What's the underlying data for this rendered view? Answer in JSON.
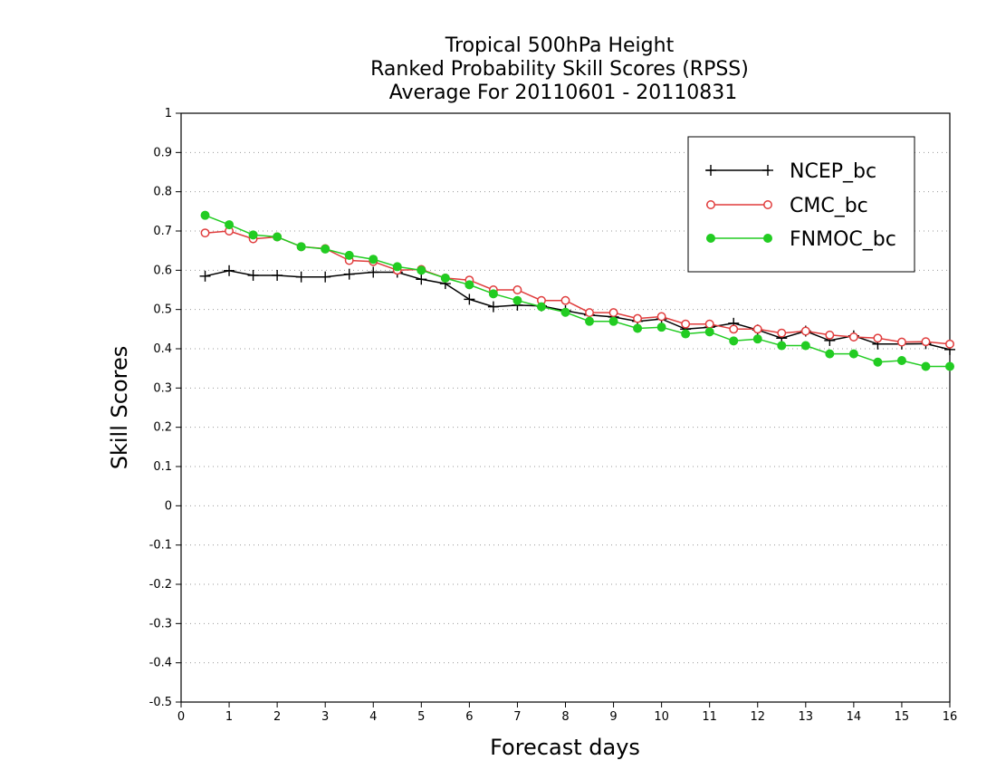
{
  "chart_data": {
    "type": "line",
    "title": [
      "Tropical 500hPa Height",
      "Ranked Probability Skill Scores (RPSS)",
      "Average For 20110601 - 20110831"
    ],
    "xlabel": "Forecast days",
    "ylabel": "Skill Scores",
    "xlim": [
      0,
      16
    ],
    "ylim": [
      -0.5,
      1
    ],
    "xticks": [
      0,
      1,
      2,
      3,
      4,
      5,
      6,
      7,
      8,
      9,
      10,
      11,
      12,
      13,
      14,
      15,
      16
    ],
    "yticks": [
      -0.5,
      -0.4,
      -0.3,
      -0.2,
      -0.1,
      0,
      0.1,
      0.2,
      0.3,
      0.4,
      0.5,
      0.6,
      0.7,
      0.8,
      0.9,
      1
    ],
    "ytick_labels": [
      "-0.5",
      "-0.4",
      "-0.3",
      "-0.2",
      "-0.1",
      "0",
      "0.1",
      "0.2",
      "0.3",
      "0.4",
      "0.5",
      "0.6",
      "0.7",
      "0.8",
      "0.9",
      "1"
    ],
    "grid": "horizontal dotted",
    "legend_position": "top-right",
    "x": [
      0.5,
      1,
      1.5,
      2,
      2.5,
      3,
      3.5,
      4,
      4.5,
      5,
      5.5,
      6,
      6.5,
      7,
      7.5,
      8,
      8.5,
      9,
      9.5,
      10,
      10.5,
      11,
      11.5,
      12,
      12.5,
      13,
      13.5,
      14,
      14.5,
      15,
      15.5,
      16
    ],
    "series": [
      {
        "name": "NCEP_bc",
        "color": "#000000",
        "marker": "plus",
        "values": [
          0.585,
          0.599,
          0.587,
          0.587,
          0.583,
          0.583,
          0.59,
          0.595,
          0.595,
          0.577,
          0.566,
          0.526,
          0.507,
          0.511,
          0.509,
          0.497,
          0.486,
          0.481,
          0.47,
          0.476,
          0.45,
          0.455,
          0.465,
          0.448,
          0.427,
          0.445,
          0.421,
          0.433,
          0.412,
          0.412,
          0.413,
          0.398
        ]
      },
      {
        "name": "CMC_bc",
        "color": "#e03c3c",
        "marker": "open-circle",
        "values": [
          0.695,
          0.7,
          0.68,
          0.685,
          0.66,
          0.655,
          0.625,
          0.622,
          0.6,
          0.602,
          0.58,
          0.575,
          0.55,
          0.55,
          0.523,
          0.523,
          0.492,
          0.492,
          0.477,
          0.482,
          0.463,
          0.463,
          0.45,
          0.45,
          0.44,
          0.445,
          0.435,
          0.43,
          0.427,
          0.417,
          0.418,
          0.412
        ]
      },
      {
        "name": "FNMOC_bc",
        "color": "#22cc22",
        "marker": "filled-circle",
        "values": [
          0.74,
          0.716,
          0.69,
          0.685,
          0.66,
          0.654,
          0.638,
          0.628,
          0.609,
          0.6,
          0.58,
          0.563,
          0.54,
          0.523,
          0.507,
          0.493,
          0.47,
          0.47,
          0.452,
          0.455,
          0.438,
          0.443,
          0.42,
          0.425,
          0.408,
          0.408,
          0.387,
          0.387,
          0.366,
          0.37,
          0.355,
          0.355
        ]
      }
    ]
  }
}
